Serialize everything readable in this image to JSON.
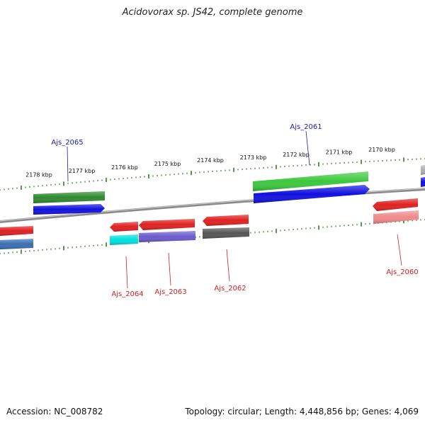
{
  "title": "Acidovorax sp. JS42, complete genome",
  "footer": {
    "accession": "Accession: NC_008782",
    "summary": "Topology: circular; Length: 4,448,856 bp; Genes: 4,069"
  },
  "colors": {
    "backbone": "#8a8a8a",
    "tick": "#2e7d1e",
    "label_top": "#1a1aa8",
    "label_bottom": "#cc2020"
  },
  "scale_ticks": [
    {
      "label": "2178 kbp"
    },
    {
      "label": "2177 kbp"
    },
    {
      "label": "2176 kbp"
    },
    {
      "label": "2175 kbp"
    },
    {
      "label": "2174 kbp"
    },
    {
      "label": "2173 kbp"
    },
    {
      "label": "2172 kbp"
    },
    {
      "label": "2171 kbp"
    },
    {
      "label": "2170 kbp"
    }
  ],
  "gene_labels": [
    {
      "name": "Ajs_2065",
      "strand": "forward"
    },
    {
      "name": "Ajs_2061",
      "strand": "forward"
    },
    {
      "name": "Ajs_2064",
      "strand": "reverse"
    },
    {
      "name": "Ajs_2063",
      "strand": "reverse"
    },
    {
      "name": "Ajs_2062",
      "strand": "reverse"
    },
    {
      "name": "Ajs_2060",
      "strand": "reverse"
    }
  ],
  "features": [
    {
      "id": "f-a",
      "color": "#e02020"
    },
    {
      "id": "f-b",
      "color": "#3a6fb0"
    },
    {
      "id": "f-c",
      "color": "#2e8b2e"
    },
    {
      "id": "f-d",
      "color": "#1010e0"
    },
    {
      "id": "f-e",
      "color": "#e02020"
    },
    {
      "id": "f-f",
      "color": "#00e0e0"
    },
    {
      "id": "f-g",
      "color": "#e02020"
    },
    {
      "id": "f-h",
      "color": "#6a5acd"
    },
    {
      "id": "f-i",
      "color": "#e02020"
    },
    {
      "id": "f-j",
      "color": "#555555"
    },
    {
      "id": "f-k",
      "color": "#3cc83c"
    },
    {
      "id": "f-l",
      "color": "#1010e0"
    },
    {
      "id": "f-m",
      "color": "#e02020"
    },
    {
      "id": "f-n",
      "color": "#f08a8a"
    },
    {
      "id": "f-o",
      "color": "#b0b0b0"
    },
    {
      "id": "f-p",
      "color": "#1010e0"
    }
  ]
}
